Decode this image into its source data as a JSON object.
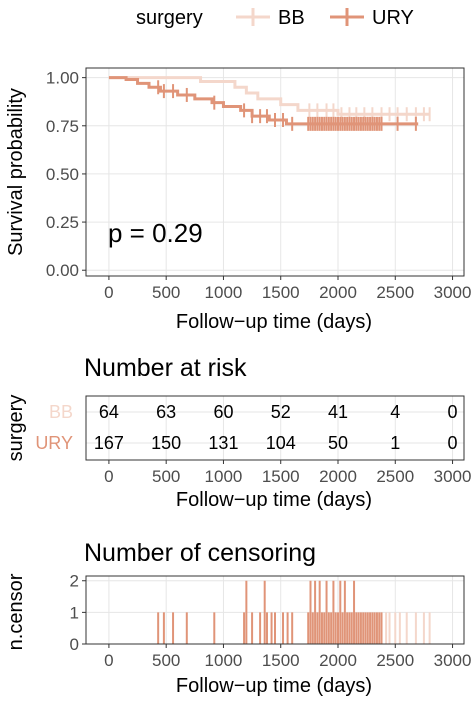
{
  "colors": {
    "BB": "#f4d7cb",
    "URY": "#e09478",
    "grid": "#e6e6e6",
    "panel_border": "#333333"
  },
  "legend": {
    "title": "surgery",
    "items": [
      "BB",
      "URY"
    ]
  },
  "chart_data": [
    {
      "type": "line",
      "xlabel": "Follow−up time (days)",
      "ylabel": "Survival probability",
      "xlim": [
        -200,
        3100
      ],
      "ylim": [
        -0.03,
        1.05
      ],
      "x_ticks": [
        0,
        500,
        1000,
        1500,
        2000,
        2500,
        3000
      ],
      "x_tick_labels": [
        "0",
        "500",
        "1000",
        "1500",
        "2000",
        "2500",
        "3000"
      ],
      "y_ticks": [
        0,
        0.25,
        0.5,
        0.75,
        1.0
      ],
      "y_tick_labels": [
        "0.00",
        "0.25",
        "0.50",
        "0.75",
        "1.00"
      ],
      "annotation": "p = 0.29",
      "grid": true,
      "legend_position": "top",
      "series": [
        {
          "name": "BB",
          "steps": [
            [
              0,
              1.0
            ],
            [
              800,
              0.98
            ],
            [
              1100,
              0.95
            ],
            [
              1200,
              0.92
            ],
            [
              1300,
              0.89
            ],
            [
              1500,
              0.86
            ],
            [
              1650,
              0.83
            ],
            [
              2000,
              0.81
            ],
            [
              2800,
              0.81
            ]
          ],
          "censor_x": [
            1750,
            1820,
            1900,
            1960,
            2030,
            2100,
            2160,
            2230,
            2300,
            2380,
            2450,
            2520,
            2600,
            2680,
            2750,
            2800
          ]
        },
        {
          "name": "URY",
          "steps": [
            [
              0,
              1.0
            ],
            [
              150,
              0.99
            ],
            [
              250,
              0.97
            ],
            [
              350,
              0.95
            ],
            [
              450,
              0.93
            ],
            [
              600,
              0.91
            ],
            [
              750,
              0.89
            ],
            [
              900,
              0.87
            ],
            [
              1000,
              0.85
            ],
            [
              1150,
              0.83
            ],
            [
              1250,
              0.8
            ],
            [
              1400,
              0.78
            ],
            [
              1550,
              0.76
            ],
            [
              2700,
              0.76
            ]
          ],
          "censor_x": [
            430,
            480,
            560,
            680,
            920,
            1180,
            1250,
            1320,
            1380,
            1450,
            1520,
            1600,
            1740,
            1760,
            1780,
            1800,
            1820,
            1840,
            1860,
            1880,
            1900,
            1920,
            1940,
            1960,
            1980,
            2000,
            2020,
            2040,
            2060,
            2080,
            2100,
            2120,
            2140,
            2160,
            2180,
            2200,
            2220,
            2240,
            2260,
            2280,
            2300,
            2320,
            2340,
            2360,
            2380,
            2520,
            2680
          ]
        }
      ]
    },
    {
      "type": "table",
      "title": "Number at risk",
      "xlabel": "Follow−up time (days)",
      "ylabel": "surgery",
      "xlim": [
        -200,
        3100
      ],
      "x_ticks": [
        0,
        500,
        1000,
        1500,
        2000,
        2500,
        3000
      ],
      "x_tick_labels": [
        "0",
        "500",
        "1000",
        "1500",
        "2000",
        "2500",
        "3000"
      ],
      "time_points": [
        0,
        500,
        1000,
        1500,
        2000,
        2500,
        3000
      ],
      "rows": [
        {
          "name": "BB",
          "values": [
            "64",
            "63",
            "60",
            "52",
            "41",
            "4",
            "0"
          ]
        },
        {
          "name": "URY",
          "values": [
            "167",
            "150",
            "131",
            "104",
            "50",
            "1",
            "0"
          ]
        }
      ]
    },
    {
      "type": "bar",
      "title": "Number of censoring",
      "xlabel": "Follow−up time (days)",
      "ylabel": "n.censor",
      "xlim": [
        -200,
        3100
      ],
      "ylim": [
        0,
        2.15
      ],
      "x_ticks": [
        0,
        500,
        1000,
        1500,
        2000,
        2500,
        3000
      ],
      "x_tick_labels": [
        "0",
        "500",
        "1000",
        "1500",
        "2000",
        "2500",
        "3000"
      ],
      "y_ticks": [
        0,
        1,
        2
      ],
      "y_tick_labels": [
        "0",
        "1",
        "2"
      ],
      "series": [
        {
          "name": "URY",
          "bars": [
            [
              430,
              1
            ],
            [
              480,
              1
            ],
            [
              560,
              1
            ],
            [
              680,
              1
            ],
            [
              920,
              1
            ],
            [
              1180,
              1
            ],
            [
              1200,
              2
            ],
            [
              1250,
              1
            ],
            [
              1320,
              1
            ],
            [
              1360,
              2
            ],
            [
              1380,
              1
            ],
            [
              1420,
              1
            ],
            [
              1450,
              1
            ],
            [
              1520,
              1
            ],
            [
              1560,
              1
            ],
            [
              1600,
              1
            ],
            [
              1740,
              1
            ],
            [
              1760,
              2
            ],
            [
              1780,
              1
            ],
            [
              1800,
              2
            ],
            [
              1820,
              1
            ],
            [
              1840,
              2
            ],
            [
              1860,
              1
            ],
            [
              1880,
              1
            ],
            [
              1900,
              2
            ],
            [
              1920,
              1
            ],
            [
              1940,
              1
            ],
            [
              1960,
              2
            ],
            [
              1980,
              1
            ],
            [
              2000,
              1
            ],
            [
              2020,
              2
            ],
            [
              2040,
              1
            ],
            [
              2060,
              2
            ],
            [
              2080,
              1
            ],
            [
              2100,
              1
            ],
            [
              2120,
              1
            ],
            [
              2140,
              2
            ],
            [
              2160,
              1
            ],
            [
              2180,
              1
            ],
            [
              2200,
              1
            ],
            [
              2220,
              1
            ],
            [
              2240,
              1
            ],
            [
              2260,
              1
            ],
            [
              2280,
              1
            ],
            [
              2300,
              1
            ],
            [
              2320,
              1
            ],
            [
              2340,
              1
            ],
            [
              2360,
              1
            ],
            [
              2380,
              1
            ]
          ]
        },
        {
          "name": "BB",
          "bars": [
            [
              2420,
              1
            ],
            [
              2450,
              1
            ],
            [
              2500,
              1
            ],
            [
              2540,
              1
            ],
            [
              2600,
              1
            ],
            [
              2680,
              1
            ],
            [
              2750,
              1
            ],
            [
              2800,
              1
            ]
          ]
        }
      ]
    }
  ]
}
